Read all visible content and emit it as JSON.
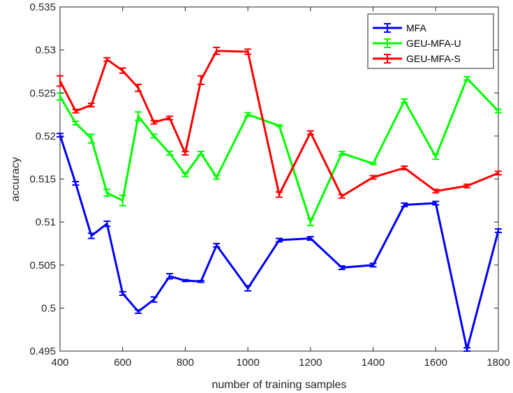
{
  "chart_data": {
    "type": "line",
    "title": "",
    "xlabel": "number of training samples",
    "ylabel": "accuracy",
    "xlim": [
      400,
      1800
    ],
    "ylim": [
      0.495,
      0.535
    ],
    "xticks": [
      400,
      600,
      800,
      1000,
      1200,
      1400,
      1600,
      1800
    ],
    "xtick_labels": [
      "400",
      "600",
      "800",
      "1000",
      "1200",
      "1400",
      "1600",
      "1800"
    ],
    "yticks": [
      0.495,
      0.5,
      0.505,
      0.51,
      0.515,
      0.52,
      0.525,
      0.53,
      0.535
    ],
    "ytick_labels": [
      "0.495",
      "0.5",
      "0.505",
      "0.51",
      "0.515",
      "0.52",
      "0.525",
      "0.53",
      "0.535"
    ],
    "grid": false,
    "legend_position": "top-right",
    "error_bars": true,
    "x": [
      400,
      450,
      500,
      550,
      600,
      650,
      700,
      750,
      800,
      850,
      900,
      1000,
      1100,
      1200,
      1300,
      1400,
      1500,
      1600,
      1700,
      1800
    ],
    "series": [
      {
        "name": "MFA",
        "color": "#0000ff",
        "values": [
          0.5201,
          0.5145,
          0.5084,
          0.5098,
          0.5017,
          0.4996,
          0.501,
          0.5037,
          0.5032,
          0.5031,
          0.5073,
          0.5023,
          0.5079,
          0.5081,
          0.5047,
          0.505,
          0.512,
          0.5122,
          0.4952,
          0.509
        ],
        "errors": [
          0.0002,
          0.0002,
          0.0003,
          0.0003,
          0.0002,
          0.0002,
          0.0003,
          0.0003,
          0.0001,
          0.0001,
          0.0002,
          0.0003,
          0.0002,
          0.0002,
          0.0002,
          0.0002,
          0.0002,
          0.0002,
          0.0002,
          0.0002
        ]
      },
      {
        "name": "GEU-MFA-U",
        "color": "#00ff00",
        "values": [
          0.5246,
          0.5215,
          0.5197,
          0.5134,
          0.5125,
          0.5223,
          0.52,
          0.518,
          0.5155,
          0.518,
          0.5152,
          0.5225,
          0.5212,
          0.51,
          0.518,
          0.5168,
          0.5241,
          0.5176,
          0.5267,
          0.5229
        ],
        "errors": [
          0.0004,
          0.0002,
          0.0005,
          0.0004,
          0.0006,
          0.0005,
          0.0002,
          0.0002,
          0.0002,
          0.0002,
          0.0002,
          0.0002,
          0.0001,
          0.0004,
          0.0002,
          0.0001,
          0.0002,
          0.0003,
          0.0002,
          0.0002
        ]
      },
      {
        "name": "GEU-MFA-S",
        "color": "#ff0000",
        "values": [
          0.5264,
          0.5229,
          0.5236,
          0.5289,
          0.5276,
          0.5256,
          0.5216,
          0.5221,
          0.518,
          0.5265,
          0.5299,
          0.5298,
          0.5132,
          0.5204,
          0.513,
          0.5152,
          0.5163,
          0.5136,
          0.5142,
          0.5157
        ],
        "errors": [
          0.0006,
          0.0002,
          0.0002,
          0.0002,
          0.0003,
          0.0004,
          0.0002,
          0.0002,
          0.0002,
          0.0005,
          0.0004,
          0.0003,
          0.0003,
          0.0002,
          0.0002,
          0.0002,
          0.0002,
          0.0002,
          0.0002,
          0.0002
        ]
      }
    ]
  }
}
